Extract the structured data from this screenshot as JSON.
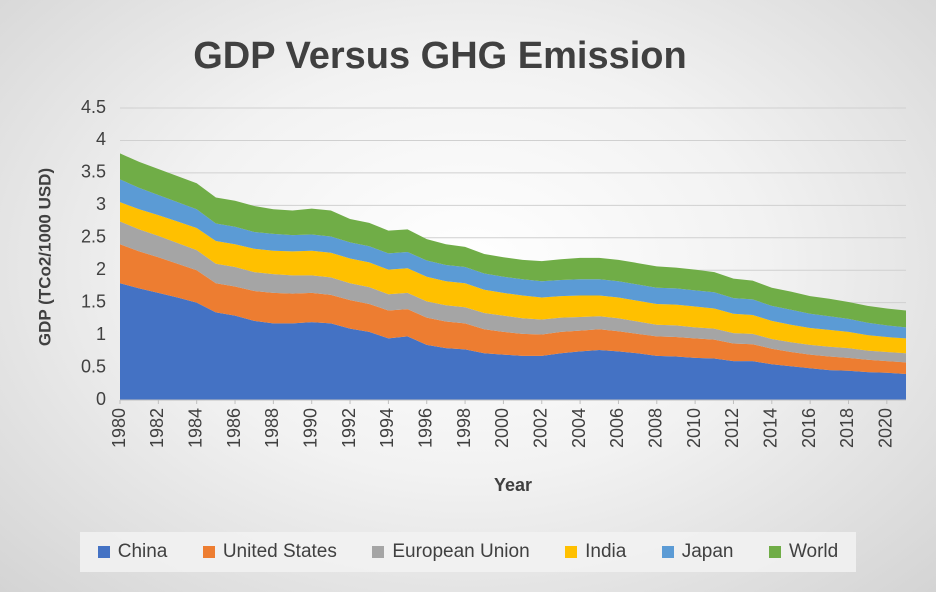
{
  "chart_data": {
    "type": "stacked_area",
    "title": "GDP  Versus  GHG Emission",
    "x_label": "Year",
    "y_label": "GDP (TCo2/1000 USD)",
    "x": [
      1980,
      1981,
      1982,
      1983,
      1984,
      1985,
      1986,
      1987,
      1988,
      1989,
      1990,
      1991,
      1992,
      1993,
      1994,
      1995,
      1996,
      1997,
      1998,
      1999,
      2000,
      2001,
      2002,
      2003,
      2004,
      2005,
      2006,
      2007,
      2008,
      2009,
      2010,
      2011,
      2012,
      2013,
      2014,
      2015,
      2016,
      2017,
      2018,
      2019,
      2020,
      2021
    ],
    "xlim": [
      1980,
      2021
    ],
    "xticks": [
      1980,
      1982,
      1984,
      1986,
      1988,
      1990,
      1992,
      1994,
      1996,
      1998,
      2000,
      2002,
      2004,
      2006,
      2008,
      2010,
      2012,
      2014,
      2016,
      2018,
      2020
    ],
    "ylim": [
      0,
      4.5
    ],
    "yticks": [
      0,
      0.5,
      1,
      1.5,
      2,
      2.5,
      3,
      3.5,
      4,
      4.5
    ],
    "grid": true,
    "series": [
      {
        "name": "China",
        "color": "#4472c4",
        "values": [
          1.8,
          1.72,
          1.65,
          1.58,
          1.5,
          1.35,
          1.3,
          1.22,
          1.18,
          1.18,
          1.2,
          1.18,
          1.1,
          1.05,
          0.95,
          0.98,
          0.85,
          0.8,
          0.78,
          0.72,
          0.7,
          0.68,
          0.68,
          0.72,
          0.75,
          0.77,
          0.75,
          0.72,
          0.68,
          0.67,
          0.65,
          0.64,
          0.6,
          0.6,
          0.55,
          0.52,
          0.49,
          0.46,
          0.45,
          0.43,
          0.42,
          0.4
        ]
      },
      {
        "name": "United States",
        "color": "#ed7d31",
        "values": [
          0.6,
          0.57,
          0.55,
          0.52,
          0.5,
          0.45,
          0.45,
          0.46,
          0.47,
          0.46,
          0.45,
          0.44,
          0.44,
          0.43,
          0.43,
          0.42,
          0.42,
          0.41,
          0.4,
          0.37,
          0.35,
          0.34,
          0.33,
          0.33,
          0.32,
          0.32,
          0.31,
          0.3,
          0.3,
          0.3,
          0.3,
          0.29,
          0.27,
          0.26,
          0.24,
          0.22,
          0.21,
          0.21,
          0.2,
          0.19,
          0.18,
          0.18
        ]
      },
      {
        "name": "European Union",
        "color": "#a5a5a5",
        "values": [
          0.35,
          0.34,
          0.33,
          0.32,
          0.31,
          0.3,
          0.3,
          0.29,
          0.29,
          0.28,
          0.27,
          0.27,
          0.26,
          0.26,
          0.25,
          0.25,
          0.25,
          0.25,
          0.25,
          0.25,
          0.25,
          0.24,
          0.23,
          0.22,
          0.21,
          0.2,
          0.2,
          0.19,
          0.18,
          0.18,
          0.17,
          0.17,
          0.16,
          0.16,
          0.15,
          0.15,
          0.15,
          0.15,
          0.15,
          0.14,
          0.14,
          0.14
        ]
      },
      {
        "name": "India",
        "color": "#ffc000",
        "values": [
          0.3,
          0.31,
          0.32,
          0.33,
          0.34,
          0.35,
          0.35,
          0.36,
          0.36,
          0.37,
          0.38,
          0.38,
          0.38,
          0.38,
          0.38,
          0.38,
          0.38,
          0.37,
          0.37,
          0.36,
          0.35,
          0.35,
          0.34,
          0.33,
          0.33,
          0.32,
          0.32,
          0.32,
          0.32,
          0.32,
          0.32,
          0.31,
          0.3,
          0.29,
          0.28,
          0.27,
          0.26,
          0.26,
          0.25,
          0.24,
          0.23,
          0.23
        ]
      },
      {
        "name": "Japan",
        "color": "#5b9bd5",
        "values": [
          0.35,
          0.33,
          0.31,
          0.3,
          0.29,
          0.27,
          0.27,
          0.26,
          0.26,
          0.25,
          0.25,
          0.25,
          0.25,
          0.25,
          0.25,
          0.25,
          0.25,
          0.25,
          0.25,
          0.25,
          0.25,
          0.25,
          0.25,
          0.25,
          0.25,
          0.25,
          0.25,
          0.25,
          0.25,
          0.25,
          0.25,
          0.25,
          0.24,
          0.24,
          0.23,
          0.23,
          0.22,
          0.21,
          0.2,
          0.19,
          0.18,
          0.17
        ]
      },
      {
        "name": "World",
        "color": "#70ad47",
        "values": [
          0.4,
          0.4,
          0.4,
          0.4,
          0.4,
          0.4,
          0.4,
          0.4,
          0.38,
          0.38,
          0.4,
          0.4,
          0.36,
          0.36,
          0.35,
          0.35,
          0.33,
          0.32,
          0.31,
          0.3,
          0.3,
          0.3,
          0.31,
          0.32,
          0.33,
          0.33,
          0.33,
          0.33,
          0.33,
          0.32,
          0.32,
          0.31,
          0.3,
          0.29,
          0.28,
          0.28,
          0.27,
          0.27,
          0.26,
          0.26,
          0.26,
          0.26
        ]
      }
    ]
  }
}
